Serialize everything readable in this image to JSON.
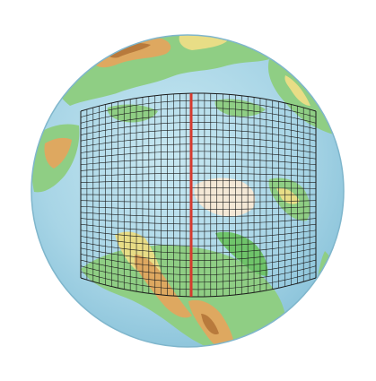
{
  "map": {
    "projection": "orthographic",
    "view": "north-polar",
    "colors": {
      "background": "#ffffff",
      "ocean": "#a9d6e6",
      "ocean_shallow": "#c4e6f0",
      "land_green": "#8fce84",
      "land_bright_green": "#6fc46a",
      "land_yellow": "#e8dd86",
      "land_orange": "#dea860",
      "land_brown": "#b87a3c",
      "ice": "#f4e8d6",
      "grid": "#1a1a1a",
      "meridian": "#d63a2e"
    },
    "grid": {
      "rows": 28,
      "cols": 38
    },
    "highlighted_line": "center-meridian"
  }
}
